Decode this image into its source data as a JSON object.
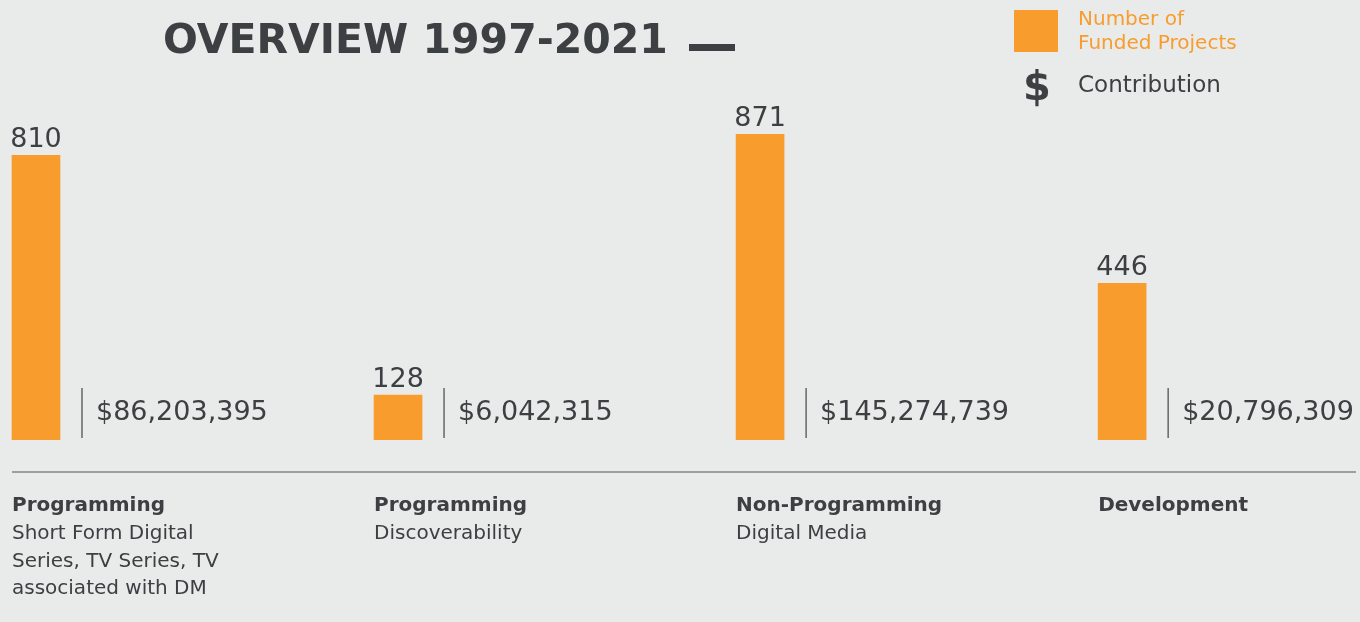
{
  "chart_data": {
    "type": "bar",
    "title": "OVERVIEW 1997-2021",
    "categories": [
      "Programming\nShort Form Digital Series, TV Series, TV associated with DM",
      "Programming\nDiscoverability",
      "Non-Programming\nDigital Media",
      "Development"
    ],
    "series": [
      {
        "name": "Number of Funded Projects",
        "color": "#f89c2e",
        "values": [
          810,
          128,
          871,
          446
        ]
      }
    ],
    "data_labels": true,
    "legend": "top right",
    "annotations": [
      "$",
      "Contribution",
      "$86,203,395",
      "$6,042,315",
      "$145,274,739",
      "$20,796,309"
    ]
  }
}
